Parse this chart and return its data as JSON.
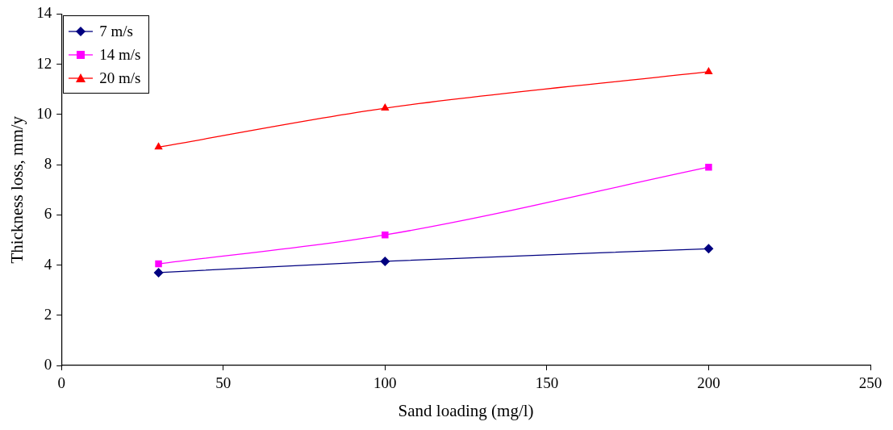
{
  "chart_data": {
    "type": "line",
    "xlabel": "Sand loading (mg/l)",
    "ylabel": "Thickness loss, mm/y",
    "x": [
      30,
      100,
      200
    ],
    "series": [
      {
        "name": "7 m/s",
        "color": "#000080",
        "marker": "diamond",
        "values": [
          3.7,
          4.15,
          4.65
        ]
      },
      {
        "name": "14 m/s",
        "color": "#ff00ff",
        "marker": "square",
        "values": [
          4.05,
          5.2,
          7.9
        ]
      },
      {
        "name": "20 m/s",
        "color": "#ff0000",
        "marker": "triangle",
        "values": [
          8.7,
          10.25,
          11.7
        ]
      }
    ],
    "xlim": [
      0,
      250
    ],
    "xticks": [
      0,
      50,
      100,
      150,
      200,
      250
    ],
    "ylim": [
      0,
      14
    ],
    "yticks": [
      0,
      2,
      4,
      6,
      8,
      10,
      12,
      14
    ],
    "grid": false,
    "legend": "top left",
    "line_style": "solid"
  }
}
